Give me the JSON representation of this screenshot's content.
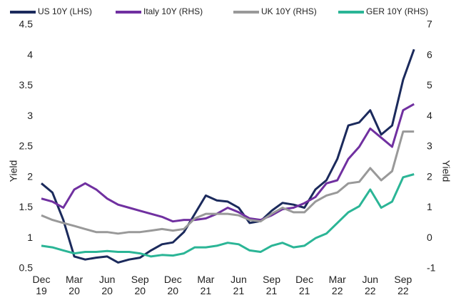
{
  "chart_data": {
    "type": "line",
    "y_label": "Yield",
    "y2_label": "Yield",
    "categories": [
      "Dec 19",
      null,
      null,
      "Mar 20",
      null,
      null,
      "Jun 20",
      null,
      null,
      "Sep 20",
      null,
      null,
      "Dec 20",
      null,
      null,
      "Mar 21",
      null,
      null,
      "Jun 21",
      null,
      null,
      "Sep 21",
      null,
      null,
      "Dec 21",
      null,
      null,
      "Mar 22",
      null,
      null,
      "Jun 22",
      null,
      null,
      "Sep 22",
      null
    ],
    "ylim": [
      0.5,
      4.5
    ],
    "yticks": [
      0.5,
      1,
      1.5,
      2,
      2.5,
      3,
      3.5,
      4,
      4.5
    ],
    "y2lim": [
      -1,
      7
    ],
    "y2ticks": [
      -1,
      0,
      1,
      2,
      3,
      4,
      5,
      6,
      7
    ],
    "series": [
      {
        "name": "US 10Y (LHS)",
        "color": "#1b2a5c",
        "values": [
          1.9,
          1.75,
          1.3,
          0.7,
          0.65,
          0.68,
          0.7,
          0.6,
          0.65,
          0.68,
          0.8,
          0.9,
          0.93,
          1.1,
          1.4,
          1.7,
          1.62,
          1.6,
          1.5,
          1.25,
          1.28,
          1.45,
          1.58,
          1.55,
          1.5,
          1.8,
          1.95,
          2.3,
          2.85,
          2.9,
          3.1,
          2.7,
          2.85,
          3.6,
          4.1
        ]
      },
      {
        "name": "Italy 10Y (RHS)",
        "color": "#7030a0",
        "axis": "y2",
        "values": [
          1.3,
          1.2,
          1.0,
          1.6,
          1.8,
          1.6,
          1.3,
          1.1,
          1.0,
          0.9,
          0.8,
          0.7,
          0.55,
          0.6,
          0.6,
          0.65,
          0.8,
          1.0,
          0.85,
          0.65,
          0.6,
          0.75,
          0.95,
          1.0,
          1.15,
          1.35,
          1.8,
          1.9,
          2.6,
          3.0,
          3.6,
          3.3,
          3.0,
          4.2,
          4.4
        ]
      },
      {
        "name": "UK 10Y (RHS)",
        "color": "#999999",
        "axis": "y2",
        "values": [
          0.75,
          0.6,
          0.5,
          0.4,
          0.3,
          0.2,
          0.2,
          0.15,
          0.2,
          0.2,
          0.25,
          0.3,
          0.25,
          0.3,
          0.65,
          0.8,
          0.8,
          0.8,
          0.75,
          0.6,
          0.55,
          0.8,
          1.0,
          0.85,
          0.85,
          1.2,
          1.4,
          1.5,
          1.8,
          1.85,
          2.3,
          1.9,
          2.2,
          3.5,
          3.5
        ]
      },
      {
        "name": "GER 10Y (RHS)",
        "color": "#2bb596",
        "axis": "y2",
        "values": [
          -0.25,
          -0.3,
          -0.4,
          -0.5,
          -0.45,
          -0.45,
          -0.42,
          -0.45,
          -0.45,
          -0.5,
          -0.6,
          -0.55,
          -0.57,
          -0.5,
          -0.3,
          -0.3,
          -0.25,
          -0.15,
          -0.2,
          -0.4,
          -0.45,
          -0.25,
          -0.15,
          -0.3,
          -0.25,
          0,
          0.15,
          0.5,
          0.85,
          1.05,
          1.6,
          1.0,
          1.2,
          2.0,
          2.1
        ]
      }
    ]
  }
}
